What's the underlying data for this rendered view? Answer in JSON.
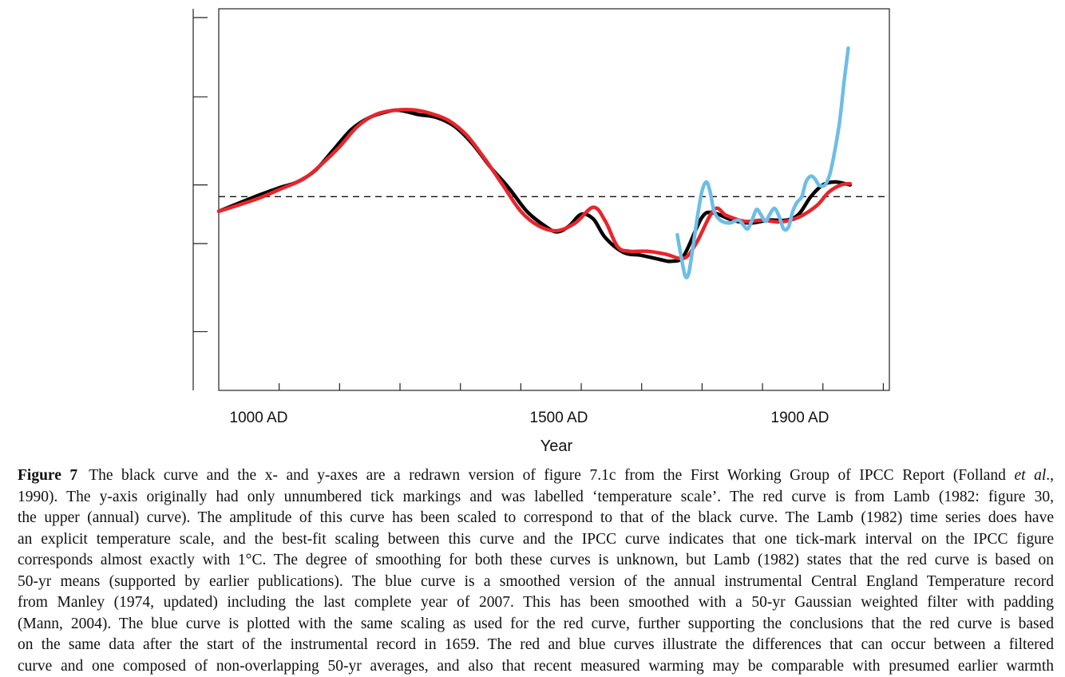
{
  "chart_data": {
    "type": "line",
    "xlabel": "Year",
    "x_tick_labels": [
      {
        "year": 1000,
        "label": "1000 AD"
      },
      {
        "year": 1500,
        "label": "1500 AD"
      },
      {
        "year": 1900,
        "label": "1900 AD"
      }
    ],
    "x_minor_ticks": [
      1000,
      1100,
      1200,
      1300,
      1400,
      1500,
      1600,
      1700,
      1800,
      1900,
      2000
    ],
    "xlim": [
      900,
      2010
    ],
    "ylim": [
      -3.5,
      3.0
    ],
    "y_ticks": [
      -2.5,
      -1.0,
      0.0,
      1.5,
      2.85
    ],
    "reference_line_y": -0.2,
    "series": [
      {
        "color": "#000000",
        "points": [
          [
            900,
            -0.45
          ],
          [
            960,
            -0.2
          ],
          [
            1000,
            -0.05
          ],
          [
            1030,
            0.05
          ],
          [
            1060,
            0.25
          ],
          [
            1090,
            0.6
          ],
          [
            1120,
            0.95
          ],
          [
            1150,
            1.15
          ],
          [
            1180,
            1.25
          ],
          [
            1200,
            1.27
          ],
          [
            1230,
            1.2
          ],
          [
            1260,
            1.15
          ],
          [
            1290,
            1.0
          ],
          [
            1320,
            0.7
          ],
          [
            1350,
            0.3
          ],
          [
            1380,
            -0.05
          ],
          [
            1410,
            -0.45
          ],
          [
            1440,
            -0.7
          ],
          [
            1460,
            -0.8
          ],
          [
            1480,
            -0.7
          ],
          [
            1500,
            -0.5
          ],
          [
            1520,
            -0.58
          ],
          [
            1540,
            -0.9
          ],
          [
            1570,
            -1.15
          ],
          [
            1600,
            -1.2
          ],
          [
            1630,
            -1.27
          ],
          [
            1650,
            -1.3
          ],
          [
            1670,
            -1.2
          ],
          [
            1700,
            -0.55
          ],
          [
            1720,
            -0.48
          ],
          [
            1750,
            -0.6
          ],
          [
            1780,
            -0.65
          ],
          [
            1810,
            -0.6
          ],
          [
            1840,
            -0.6
          ],
          [
            1860,
            -0.5
          ],
          [
            1880,
            -0.2
          ],
          [
            1900,
            0.0
          ],
          [
            1920,
            0.05
          ],
          [
            1945,
            0.0
          ]
        ]
      },
      {
        "color": "#e8252b",
        "points": [
          [
            900,
            -0.45
          ],
          [
            960,
            -0.25
          ],
          [
            1000,
            -0.08
          ],
          [
            1040,
            0.1
          ],
          [
            1070,
            0.35
          ],
          [
            1100,
            0.65
          ],
          [
            1130,
            1.0
          ],
          [
            1160,
            1.2
          ],
          [
            1190,
            1.27
          ],
          [
            1220,
            1.28
          ],
          [
            1250,
            1.22
          ],
          [
            1280,
            1.1
          ],
          [
            1310,
            0.85
          ],
          [
            1340,
            0.45
          ],
          [
            1370,
            0.0
          ],
          [
            1400,
            -0.45
          ],
          [
            1430,
            -0.7
          ],
          [
            1460,
            -0.78
          ],
          [
            1490,
            -0.65
          ],
          [
            1520,
            -0.38
          ],
          [
            1540,
            -0.62
          ],
          [
            1560,
            -1.05
          ],
          [
            1580,
            -1.13
          ],
          [
            1610,
            -1.13
          ],
          [
            1640,
            -1.18
          ],
          [
            1670,
            -1.25
          ],
          [
            1690,
            -1.0
          ],
          [
            1720,
            -0.42
          ],
          [
            1740,
            -0.52
          ],
          [
            1770,
            -0.62
          ],
          [
            1800,
            -0.6
          ],
          [
            1830,
            -0.63
          ],
          [
            1860,
            -0.55
          ],
          [
            1890,
            -0.35
          ],
          [
            1910,
            -0.12
          ],
          [
            1930,
            0.0
          ],
          [
            1945,
            0.02
          ]
        ]
      },
      {
        "color": "#6dbde7",
        "points": [
          [
            1659,
            -0.85
          ],
          [
            1665,
            -1.2
          ],
          [
            1672,
            -1.55
          ],
          [
            1678,
            -1.5
          ],
          [
            1685,
            -1.05
          ],
          [
            1693,
            -0.5
          ],
          [
            1700,
            -0.1
          ],
          [
            1707,
            0.05
          ],
          [
            1713,
            -0.1
          ],
          [
            1720,
            -0.45
          ],
          [
            1730,
            -0.6
          ],
          [
            1745,
            -0.65
          ],
          [
            1760,
            -0.6
          ],
          [
            1768,
            -0.68
          ],
          [
            1775,
            -0.75
          ],
          [
            1782,
            -0.62
          ],
          [
            1790,
            -0.42
          ],
          [
            1797,
            -0.5
          ],
          [
            1805,
            -0.62
          ],
          [
            1812,
            -0.5
          ],
          [
            1820,
            -0.4
          ],
          [
            1828,
            -0.55
          ],
          [
            1835,
            -0.75
          ],
          [
            1843,
            -0.72
          ],
          [
            1850,
            -0.45
          ],
          [
            1857,
            -0.3
          ],
          [
            1865,
            -0.2
          ],
          [
            1872,
            0.05
          ],
          [
            1880,
            0.15
          ],
          [
            1887,
            0.1
          ],
          [
            1893,
            0.0
          ],
          [
            1900,
            -0.02
          ],
          [
            1905,
            0.02
          ],
          [
            1912,
            0.2
          ],
          [
            1920,
            0.6
          ],
          [
            1928,
            1.1
          ],
          [
            1935,
            1.75
          ],
          [
            1942,
            2.33
          ]
        ]
      }
    ]
  },
  "caption": {
    "label": "Figure 7",
    "lines": [
      {
        "text": "The black curve and the x- and y-axes are a redrawn version of figure 7.1c from the First Working Group of IPCC Report (Folland ",
        "italic": "et al",
        "after": "., "
      },
      {
        "text": "1990). The y-axis originally had only unnumbered tick markings and was labelled ‘temperature scale’. The red curve is from Lamb (1982: figure 30,"
      },
      {
        "text": "the upper (annual) curve). The amplitude of this curve has been scaled to correspond to that of the black curve. The Lamb (1982) time series does have"
      },
      {
        "text": "an explicit temperature scale, and the best-fit scaling between this curve and the IPCC curve indicates that one tick-mark interval on the IPCC figure"
      },
      {
        "text": "corresponds almost exactly with 1°C. The degree of smoothing for both these curves is unknown, but Lamb (1982) states that the red curve is based on"
      },
      {
        "text": "50-yr means (supported by earlier publications). The blue curve is a smoothed version of the annual instrumental Central England Temperature record"
      },
      {
        "text": "from Manley (1974, updated) including the last complete year of 2007. This has been smoothed with a 50-yr Gaussian weighted filter with padding"
      },
      {
        "text": "(Mann, 2004). The blue curve is plotted with the same scaling as used for the red curve, further supporting the conclusions that the red curve is based"
      },
      {
        "text": "on the same data after the start of the instrumental record in 1659. The red and blue curves illustrate the differences that can occur between a filtered"
      },
      {
        "text": "curve and one composed of non-overlapping 50-yr averages, and also that recent measured warming may be comparable with presumed earlier warmth"
      }
    ]
  }
}
